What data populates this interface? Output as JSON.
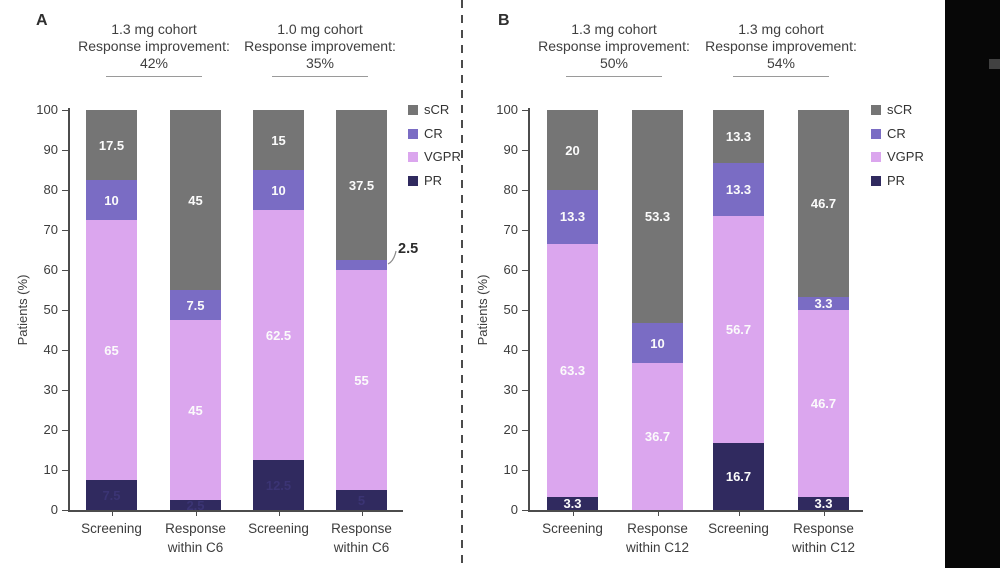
{
  "figure": {
    "panel_a_label": "A",
    "panel_b_label": "B",
    "ylabel": "Patients (%)"
  },
  "legend": {
    "items": [
      {
        "name": "sCR",
        "color": "#757575"
      },
      {
        "name": "CR",
        "color": "#7a6cc4"
      },
      {
        "name": "VGPR",
        "color": "#dba6ee"
      },
      {
        "name": "PR",
        "color": "#302a5f"
      }
    ]
  },
  "chart_data": [
    {
      "panel": "A",
      "type": "bar",
      "stacked": true,
      "ylabel": "Patients (%)",
      "ylim": [
        0,
        100
      ],
      "yticks": [
        0,
        10,
        20,
        30,
        40,
        50,
        60,
        70,
        80,
        90,
        100
      ],
      "stack_order": [
        "PR",
        "VGPR",
        "CR",
        "sCR"
      ],
      "groups": [
        {
          "title": "1.3 mg cohort",
          "subtitle": "Response improvement:",
          "value": "42%"
        },
        {
          "title": "1.0 mg cohort",
          "subtitle": "Response improvement:",
          "value": "35%"
        }
      ],
      "bars": [
        {
          "category": "Screening",
          "segments": {
            "PR": 7.5,
            "VGPR": 65,
            "CR": 10,
            "sCR": 17.5
          }
        },
        {
          "category": "Response within C6",
          "segments": {
            "PR": 2.5,
            "VGPR": 45,
            "CR": 7.5,
            "sCR": 45
          }
        },
        {
          "category": "Screening",
          "segments": {
            "PR": 12.5,
            "VGPR": 62.5,
            "CR": 10,
            "sCR": 15
          }
        },
        {
          "category": "Response within C6",
          "segments": {
            "PR": 5,
            "VGPR": 55,
            "CR": 2.5,
            "sCR": 37.5
          }
        }
      ],
      "annotations": [
        {
          "text": "2.5",
          "bar_index": 3,
          "segment": "CR"
        }
      ],
      "pr_label_faint": true
    },
    {
      "panel": "B",
      "type": "bar",
      "stacked": true,
      "ylabel": "Patients (%)",
      "ylim": [
        0,
        100
      ],
      "yticks": [
        0,
        10,
        20,
        30,
        40,
        50,
        60,
        70,
        80,
        90,
        100
      ],
      "stack_order": [
        "PR",
        "VGPR",
        "CR",
        "sCR"
      ],
      "groups": [
        {
          "title": "1.3 mg cohort",
          "subtitle": "Response improvement:",
          "value": "50%"
        },
        {
          "title": "1.3 mg cohort",
          "subtitle": "Response improvement:",
          "value": "54%"
        }
      ],
      "bars": [
        {
          "category": "Screening",
          "segments": {
            "PR": 3.3,
            "VGPR": 63.3,
            "CR": 13.3,
            "sCR": 20
          }
        },
        {
          "category": "Response within C12",
          "segments": {
            "VGPR": 36.7,
            "CR": 10,
            "sCR": 53.3
          }
        },
        {
          "category": "Screening",
          "segments": {
            "PR": 16.7,
            "VGPR": 56.7,
            "CR": 13.3,
            "sCR": 13.3
          }
        },
        {
          "category": "Response within C12",
          "segments": {
            "PR": 3.3,
            "VGPR": 46.7,
            "CR": 3.3,
            "sCR": 46.7
          }
        }
      ],
      "annotations": [],
      "pr_label_faint": false
    }
  ]
}
